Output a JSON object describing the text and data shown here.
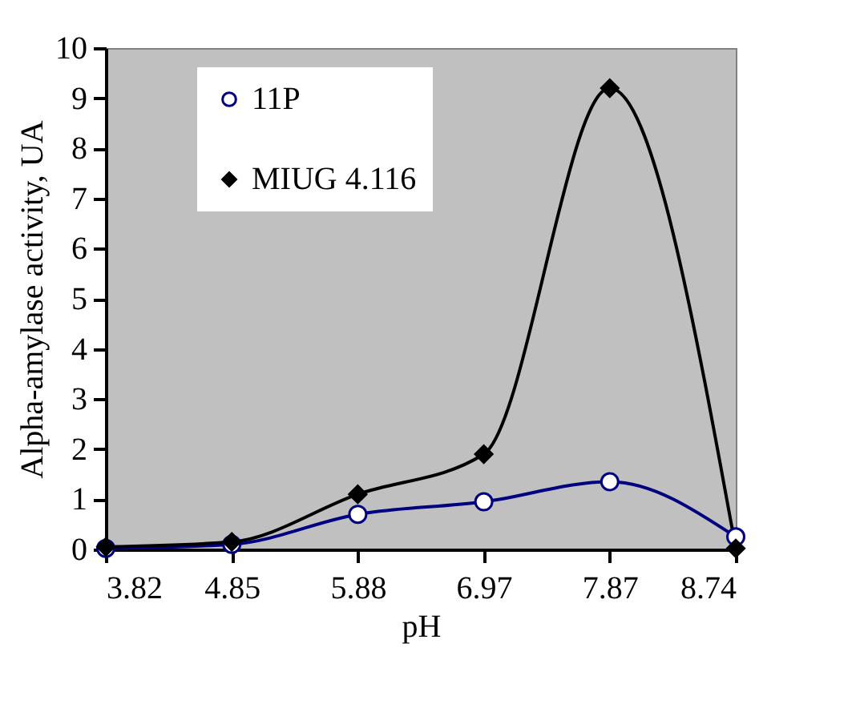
{
  "chart_data": {
    "type": "line",
    "xlabel": "pH",
    "ylabel": "Alpha-amylase activity, UA",
    "categories": [
      "3.82",
      "4.85",
      "5.88",
      "6.97",
      "7.87",
      "8.74"
    ],
    "series": [
      {
        "name": "11P",
        "color": "#000080",
        "marker": "circle",
        "values": [
          0.02,
          0.1,
          0.7,
          0.95,
          1.35,
          0.25
        ]
      },
      {
        "name": "MIUG 4.116",
        "color": "#000000",
        "marker": "diamond",
        "values": [
          0.05,
          0.15,
          1.1,
          1.9,
          9.2,
          0.02
        ]
      }
    ],
    "ylim": [
      0,
      10
    ],
    "yticks": [
      0,
      1,
      2,
      3,
      4,
      5,
      6,
      7,
      8,
      9,
      10
    ],
    "grid": false,
    "legend": "top left"
  }
}
